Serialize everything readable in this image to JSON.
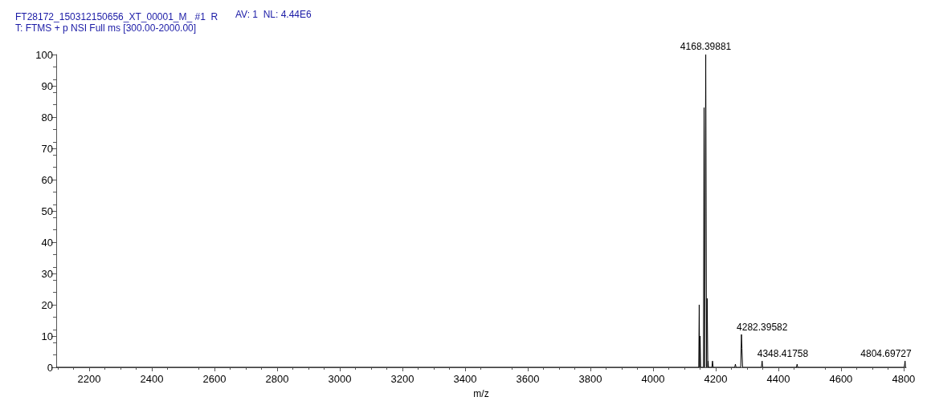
{
  "chart_data": {
    "type": "line",
    "title": "FT28172_150312150656_XT_00001_M_ #1  R",
    "subtitle": "T: FTMS + p NSI Full ms [300.00-2000.00]",
    "xlabel": "m/z",
    "annotations": [
      "AV: 1  NL: 4.44E6",
      {
        "text": "4168.39881",
        "x": 4168.39881,
        "y": 100
      },
      {
        "text": "4282.39582",
        "x": 4282.39582,
        "y": 10.5
      },
      {
        "text": "4348.41758",
        "x": 4348.41758,
        "y": 2
      },
      {
        "text": "4804.69727",
        "x": 4804.69727,
        "y": 2
      }
    ],
    "series": [
      {
        "color": "#000000",
        "x": [
          2095,
          4146,
          4147.5,
          4149,
          4150.5,
          4152,
          4161,
          4163,
          4165,
          4168.39881,
          4171,
          4173,
          4175,
          4176,
          4177,
          4188,
          4190,
          4192,
          4261,
          4263,
          4265,
          4280,
          4282.39582,
          4284,
          4286,
          4346,
          4348.41758,
          4350,
          4458,
          4460,
          4462,
          4802,
          4804.69727,
          4806,
          4808
        ],
        "values": [
          0,
          0,
          20,
          0,
          10,
          0,
          0,
          83,
          0,
          100,
          0,
          22,
          0,
          2,
          0,
          0,
          2,
          0,
          0,
          1,
          0,
          0,
          10.5,
          6,
          0,
          0,
          2,
          0,
          0,
          1,
          0,
          0,
          2,
          0,
          0
        ]
      }
    ],
    "xlim": [
      2095,
      4808
    ],
    "xticks": [
      2200,
      2400,
      2600,
      2800,
      3000,
      3200,
      3400,
      3600,
      3800,
      4000,
      4200,
      4400,
      4600,
      4800
    ],
    "ylim": [
      0,
      100
    ],
    "yticks": [
      0,
      10,
      20,
      30,
      40,
      50,
      60,
      70,
      80,
      90,
      100
    ],
    "marker": "none",
    "line_style": "solid"
  }
}
